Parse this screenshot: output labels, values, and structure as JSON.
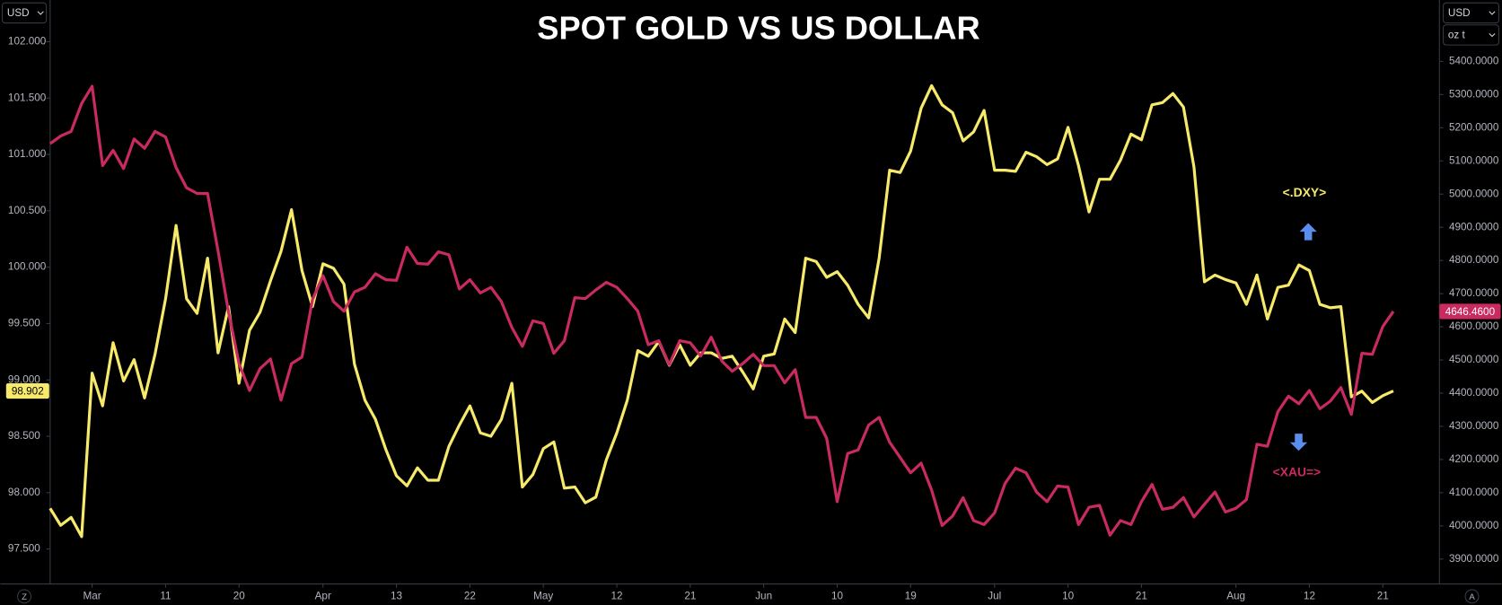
{
  "chart_data": {
    "type": "line",
    "title": "SPOT GOLD VS US DOLLAR",
    "categories": [
      null,
      null,
      null,
      null,
      "Mar",
      null,
      null,
      null,
      null,
      null,
      null,
      "11",
      null,
      null,
      null,
      null,
      null,
      null,
      "20",
      null,
      null,
      null,
      null,
      null,
      null,
      null,
      "Apr",
      null,
      null,
      null,
      null,
      null,
      null,
      "13",
      null,
      null,
      null,
      null,
      null,
      null,
      "22",
      null,
      null,
      null,
      null,
      null,
      null,
      "May",
      null,
      null,
      null,
      null,
      null,
      null,
      "12",
      null,
      null,
      null,
      null,
      null,
      null,
      "21",
      null,
      null,
      null,
      null,
      null,
      null,
      "Jun",
      null,
      null,
      null,
      null,
      null,
      null,
      "10",
      null,
      null,
      null,
      null,
      null,
      null,
      "19",
      null,
      null,
      null,
      null,
      null,
      null,
      null,
      "Jul",
      null,
      null,
      null,
      null,
      null,
      null,
      "10",
      null,
      null,
      null,
      null,
      null,
      null,
      "21",
      null,
      null,
      null,
      null,
      null,
      null,
      null,
      null,
      "Aug",
      null,
      null,
      null,
      null,
      null,
      null,
      "12",
      null,
      null,
      null,
      null,
      null,
      null,
      "21",
      null
    ],
    "series": [
      {
        "name": "<.DXY>",
        "color": "#f7ea6b",
        "axis": "y",
        "last_value_label": "98.902",
        "values": [
          97.86,
          97.71,
          97.78,
          97.61,
          99.06,
          98.77,
          99.33,
          98.99,
          99.18,
          98.84,
          99.23,
          99.72,
          100.37,
          99.72,
          99.59,
          100.08,
          99.24,
          99.65,
          98.97,
          99.44,
          99.6,
          99.88,
          100.14,
          100.51,
          99.97,
          99.65,
          100.03,
          99.99,
          99.85,
          99.14,
          98.82,
          98.65,
          98.38,
          98.15,
          98.06,
          98.22,
          98.11,
          98.11,
          98.41,
          98.6,
          98.77,
          98.53,
          98.5,
          98.65,
          98.97,
          98.05,
          98.16,
          98.39,
          98.45,
          98.04,
          98.05,
          97.91,
          97.96,
          98.29,
          98.53,
          98.82,
          99.26,
          99.21,
          99.34,
          99.13,
          99.31,
          99.13,
          99.24,
          99.24,
          99.19,
          99.21,
          99.07,
          98.92,
          99.21,
          99.23,
          99.54,
          99.42,
          100.08,
          100.05,
          99.91,
          99.96,
          99.84,
          99.67,
          99.55,
          100.08,
          100.86,
          100.84,
          101.03,
          101.41,
          101.61,
          101.44,
          101.37,
          101.12,
          101.2,
          101.39,
          100.86,
          100.86,
          100.85,
          101.02,
          100.98,
          100.91,
          100.96,
          101.24,
          100.9,
          100.49,
          100.78,
          100.78,
          100.95,
          101.18,
          101.13,
          101.44,
          101.46,
          101.54,
          101.42,
          100.89,
          99.87,
          99.93,
          99.89,
          99.86,
          99.67,
          99.93,
          99.54,
          99.82,
          99.84,
          100.02,
          99.97,
          99.67,
          99.64,
          99.65,
          98.85,
          98.9,
          98.8,
          98.86,
          98.902
        ]
      },
      {
        "name": "<XAU=>",
        "color": "#c92a5f",
        "axis": "y2",
        "last_value_label": "4646.4600",
        "values": [
          5152,
          5175,
          5189,
          5273,
          5325,
          5086,
          5132,
          5077,
          5166,
          5138,
          5189,
          5172,
          5080,
          5019,
          5002,
          5002,
          4829,
          4644,
          4489,
          4408,
          4474,
          4503,
          4379,
          4489,
          4509,
          4682,
          4754,
          4676,
          4647,
          4705,
          4719,
          4760,
          4742,
          4740,
          4840,
          4791,
          4789,
          4826,
          4817,
          4714,
          4742,
          4702,
          4719,
          4676,
          4598,
          4541,
          4618,
          4610,
          4520,
          4558,
          4688,
          4685,
          4711,
          4734,
          4719,
          4685,
          4647,
          4546,
          4558,
          4486,
          4558,
          4552,
          4512,
          4569,
          4497,
          4466,
          4489,
          4517,
          4483,
          4483,
          4431,
          4471,
          4327,
          4327,
          4264,
          4073,
          4218,
          4229,
          4304,
          4327,
          4252,
          4206,
          4160,
          4189,
          4108,
          4001,
          4030,
          4085,
          4016,
          4004,
          4039,
          4128,
          4174,
          4160,
          4102,
          4073,
          4120,
          4117,
          4004,
          4056,
          4062,
          3972,
          4016,
          4004,
          4073,
          4125,
          4050,
          4056,
          4085,
          4027,
          4065,
          4102,
          4042,
          4053,
          4079,
          4246,
          4240,
          4344,
          4391,
          4368,
          4408,
          4353,
          4376,
          4417,
          4336,
          4520,
          4517,
          4601,
          4646.46
        ]
      }
    ],
    "ylim": [
      97.19,
      102.37
    ],
    "yticks": [
      {
        "value": 97.5,
        "label": "97.500"
      },
      {
        "value": 98,
        "label": "98.000"
      },
      {
        "value": 98.5,
        "label": "98.500"
      },
      {
        "value": 99,
        "label": "99.000"
      },
      {
        "value": 99.5,
        "label": "99.500"
      },
      {
        "value": 100,
        "label": "100.000"
      },
      {
        "value": 100.5,
        "label": "100.500"
      },
      {
        "value": 101,
        "label": "101.000"
      },
      {
        "value": 101.5,
        "label": "101.500"
      },
      {
        "value": 102,
        "label": "102.000"
      }
    ],
    "y2lim": [
      3825,
      5585
    ],
    "y2ticks": [
      {
        "value": 3900,
        "label": "3900.0000"
      },
      {
        "value": 4000,
        "label": "4000.0000"
      },
      {
        "value": 4100,
        "label": "4100.0000"
      },
      {
        "value": 4200,
        "label": "4200.0000"
      },
      {
        "value": 4300,
        "label": "4300.0000"
      },
      {
        "value": 4400,
        "label": "4400.0000"
      },
      {
        "value": 4500,
        "label": "4500.0000"
      },
      {
        "value": 4600,
        "label": "4600.0000"
      },
      {
        "value": 4700,
        "label": "4700.0000"
      },
      {
        "value": 4800,
        "label": "4800.0000"
      },
      {
        "value": 4900,
        "label": "4900.0000"
      },
      {
        "value": 5000,
        "label": "5000.0000"
      },
      {
        "value": 5100,
        "label": "5100.0000"
      },
      {
        "value": 5200,
        "label": "5200.0000"
      },
      {
        "value": 5300,
        "label": "5300.0000"
      },
      {
        "value": 5400,
        "label": "5400.0000"
      }
    ],
    "grid": false
  },
  "ui": {
    "left_currency": "USD",
    "right_currency": "USD",
    "right_unit": "oz t",
    "left_button": "Z",
    "right_button": "A"
  }
}
